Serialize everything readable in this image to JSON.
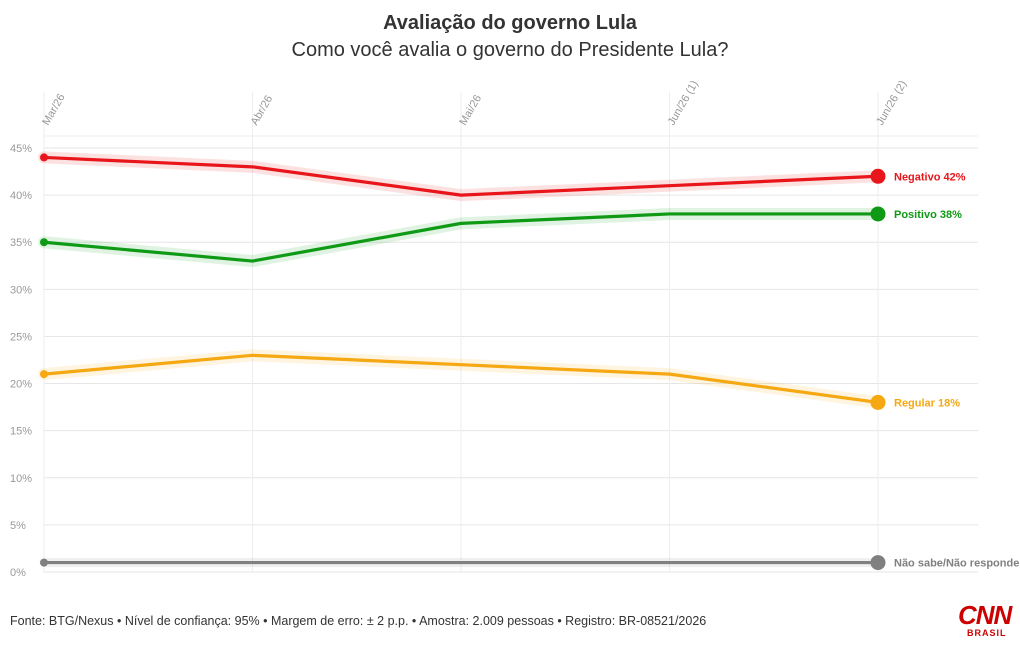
{
  "header": {
    "title": "Avaliação do governo Lula",
    "subtitle": "Como você avalia o governo do Presidente Lula?"
  },
  "footer": {
    "source": "Fonte: BTG/Nexus • Nível de confiança: 95% • Margem de erro: ± 2 p.p. • Amostra: 2.009 pessoas • Registro: BR-08521/2026"
  },
  "logo": {
    "main": "CNN",
    "sub": "BRASIL"
  },
  "chart_data": {
    "type": "line",
    "categories": [
      "Mar/26",
      "Abr/26",
      "Mai/26",
      "Jun/26 (1)",
      "Jun/26 (2)"
    ],
    "ylim": [
      0,
      45
    ],
    "yticks": [
      0,
      5,
      10,
      15,
      20,
      25,
      30,
      35,
      40,
      45
    ],
    "ytick_labels": [
      "0%",
      "5%",
      "10%",
      "15%",
      "20%",
      "25%",
      "30%",
      "35%",
      "40%",
      "45%"
    ],
    "grid": true,
    "series": [
      {
        "name": "Negativo",
        "end_label": "Negativo 42%",
        "color": "#e8151b",
        "values": [
          44,
          43,
          40,
          41,
          42
        ]
      },
      {
        "name": "Positivo",
        "end_label": "Positivo 38%",
        "color": "#0f9a16",
        "values": [
          35,
          33,
          37,
          38,
          38
        ]
      },
      {
        "name": "Regular",
        "end_label": "Regular 18%",
        "color": "#f5a811",
        "values": [
          21,
          23,
          22,
          21,
          18
        ]
      },
      {
        "name": "Não sabe/Não responde",
        "end_label": "Não sabe/Não responde",
        "color": "#808080",
        "values": [
          1,
          1,
          1,
          1,
          1
        ]
      }
    ]
  }
}
